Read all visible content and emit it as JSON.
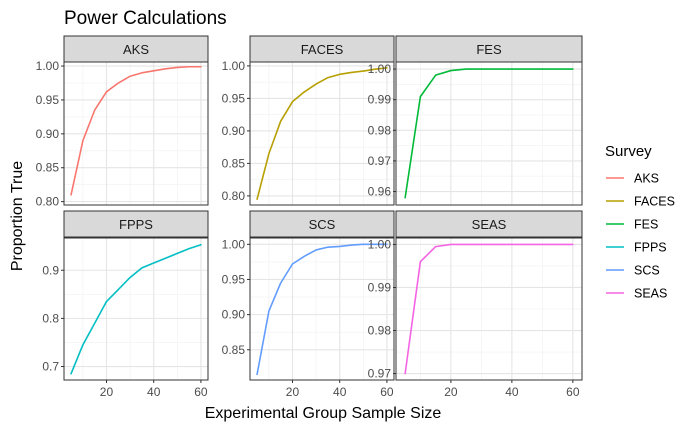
{
  "chart_data": {
    "type": "line",
    "title": "Power Calculations",
    "xlabel": "Experimental Group Sample Size",
    "ylabel": "Proportion True",
    "legend": {
      "title": "Survey",
      "placement": "right"
    },
    "grid": true,
    "x": [
      5,
      10,
      15,
      20,
      25,
      30,
      35,
      40,
      45,
      50,
      55,
      60
    ],
    "x_ticks": [
      20,
      40,
      60
    ],
    "xlim": [
      2,
      63
    ],
    "panels": [
      {
        "name": "AKS",
        "color": "#F8766D",
        "values": [
          0.81,
          0.89,
          0.935,
          0.962,
          0.975,
          0.985,
          0.99,
          0.993,
          0.996,
          0.998,
          0.999,
          0.999
        ],
        "ylim": [
          0.795,
          1.006
        ],
        "y_ticks": [
          0.8,
          0.85,
          0.9,
          0.95,
          1.0
        ],
        "y_tick_labels": [
          "0.80",
          "0.85",
          "0.90",
          "0.95",
          "1.00"
        ]
      },
      {
        "name": "FACES",
        "color": "#B79F00",
        "values": [
          0.795,
          0.865,
          0.915,
          0.945,
          0.96,
          0.972,
          0.982,
          0.987,
          0.99,
          0.992,
          0.995,
          0.997
        ],
        "ylim": [
          0.786,
          1.006
        ],
        "y_ticks": [
          0.8,
          0.85,
          0.9,
          0.95,
          1.0
        ],
        "y_tick_labels": [
          "0.80",
          "0.85",
          "0.90",
          "0.95",
          "1.00"
        ]
      },
      {
        "name": "FES",
        "color": "#00BA38",
        "values": [
          0.958,
          0.991,
          0.998,
          0.9995,
          1.0,
          1.0,
          1.0,
          1.0,
          1.0,
          1.0,
          1.0,
          1.0
        ],
        "ylim": [
          0.9556,
          1.0023
        ],
        "y_ticks": [
          0.96,
          0.97,
          0.98,
          0.99,
          1.0
        ],
        "y_tick_labels": [
          "0.96",
          "0.97",
          "0.98",
          "0.99",
          "1.00"
        ]
      },
      {
        "name": "FPPS",
        "color": "#00BFC4",
        "values": [
          0.685,
          0.745,
          0.79,
          0.835,
          0.86,
          0.885,
          0.905,
          0.915,
          0.925,
          0.935,
          0.945,
          0.953
        ],
        "ylim": [
          0.672,
          0.967
        ],
        "y_ticks": [
          0.7,
          0.8,
          0.9
        ],
        "y_tick_labels": [
          "0.7",
          "0.8",
          "0.9"
        ]
      },
      {
        "name": "SCS",
        "color": "#619CFF",
        "values": [
          0.815,
          0.905,
          0.945,
          0.972,
          0.983,
          0.992,
          0.996,
          0.997,
          0.999,
          1.0,
          1.0,
          1.0
        ],
        "ylim": [
          0.807,
          1.009
        ],
        "y_ticks": [
          0.85,
          0.9,
          0.95,
          1.0
        ],
        "y_tick_labels": [
          "0.85",
          "0.90",
          "0.95",
          "1.00"
        ]
      },
      {
        "name": "SEAS",
        "color": "#F564E3",
        "values": [
          0.97,
          0.996,
          0.9995,
          1.0,
          1.0,
          1.0,
          1.0,
          1.0,
          1.0,
          1.0,
          1.0,
          1.0
        ],
        "ylim": [
          0.9685,
          1.0015
        ],
        "y_ticks": [
          0.97,
          0.98,
          0.99,
          1.0
        ],
        "y_tick_labels": [
          "0.97",
          "0.98",
          "0.99",
          "1.00"
        ]
      }
    ]
  }
}
